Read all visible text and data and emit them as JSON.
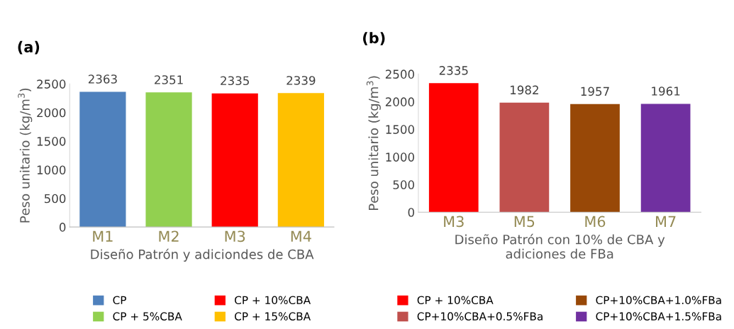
{
  "chart_data": [
    {
      "type": "bar",
      "title": "(a)",
      "xlabel": "Diseño Patrón y adiciondes de CBA",
      "ylabel": "Peso unitario (kg/m$^{3}$)",
      "categories": [
        "M1",
        "M2",
        "M3",
        "M4"
      ],
      "ylim": [
        0,
        2500
      ],
      "yticks": [
        0,
        500,
        1000,
        1500,
        2000,
        2500
      ],
      "data_labels": true,
      "legend": "bottom",
      "grid": false,
      "series": [
        {
          "name": "CP",
          "color": "#4f81bd",
          "values": [
            2363,
            null,
            null,
            null
          ]
        },
        {
          "name": "CP + 5%CBA",
          "color": "#92d050",
          "values": [
            null,
            2351,
            null,
            null
          ]
        },
        {
          "name": "CP + 10%CBA",
          "color": "#ff0000",
          "values": [
            null,
            null,
            2335,
            null
          ]
        },
        {
          "name": "CP + 15%CBA",
          "color": "#ffc000",
          "values": [
            null,
            null,
            null,
            2339
          ]
        }
      ]
    },
    {
      "type": "bar",
      "title": "(b)",
      "xlabel": "Diseño Patrón con 10% de CBA y\nadiciones de FBa",
      "ylabel": "Peso unitario (kg/m$^{3}$)",
      "categories": [
        "M3",
        "M5",
        "M6",
        "M7"
      ],
      "ylim": [
        0,
        2500
      ],
      "yticks": [
        0,
        500,
        1000,
        1500,
        2000,
        2500
      ],
      "data_labels": true,
      "legend": "bottom",
      "grid": false,
      "series": [
        {
          "name": "CP + 10%CBA",
          "color": "#ff0000",
          "values": [
            2335,
            null,
            null,
            null
          ]
        },
        {
          "name": "CP+10%CBA+0.5%FBa",
          "color": "#c0504d",
          "values": [
            null,
            1982,
            null,
            null
          ]
        },
        {
          "name": "CP+10%CBA+1.0%FBa",
          "color": "#984807",
          "values": [
            null,
            null,
            1957,
            null
          ]
        },
        {
          "name": "CP+10%CBA+1.5%FBa",
          "color": "#7030a0",
          "values": [
            null,
            null,
            null,
            1961
          ]
        }
      ]
    }
  ]
}
